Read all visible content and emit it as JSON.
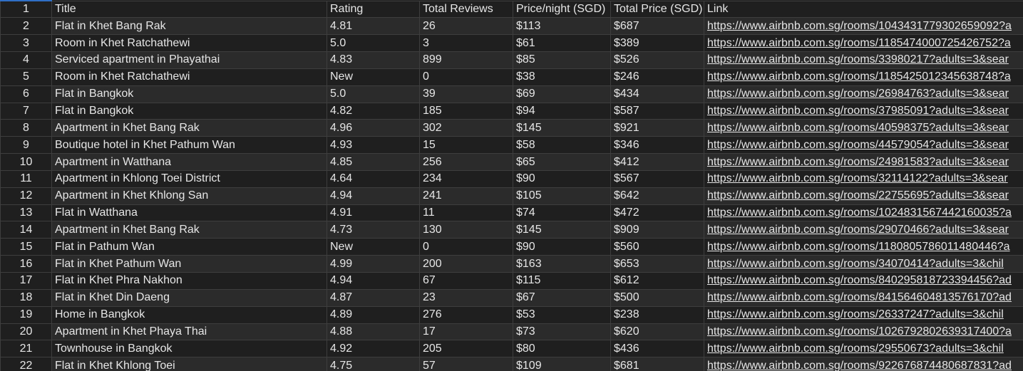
{
  "header": {
    "row_number": "1",
    "columns": [
      "Title",
      "Rating",
      "Total Reviews",
      "Price/night (SGD)",
      "Total Price (SGD)",
      "Link"
    ]
  },
  "rows": [
    {
      "n": "2",
      "title": "Flat in Khet Bang Rak",
      "rating": "4.81",
      "reviews": "26",
      "price_night": "$113",
      "total": "$687",
      "link": "https://www.airbnb.com.sg/rooms/1043431779302659092?a"
    },
    {
      "n": "3",
      "title": "Room in Khet Ratchathewi",
      "rating": "5.0",
      "reviews": "3",
      "price_night": "$61",
      "total": "$389",
      "link": "https://www.airbnb.com.sg/rooms/1185474000725426752?a"
    },
    {
      "n": "4",
      "title": "Serviced apartment in Phayathai",
      "rating": "4.83",
      "reviews": "899",
      "price_night": "$85",
      "total": "$526",
      "link": "https://www.airbnb.com.sg/rooms/33980217?adults=3&sear"
    },
    {
      "n": "5",
      "title": "Room in Khet Ratchathewi",
      "rating": "New",
      "reviews": "0",
      "price_night": "$38",
      "total": "$246",
      "link": "https://www.airbnb.com.sg/rooms/1185425012345638748?a"
    },
    {
      "n": "6",
      "title": "Flat in Bangkok",
      "rating": "5.0",
      "reviews": "39",
      "price_night": "$69",
      "total": "$434",
      "link": "https://www.airbnb.com.sg/rooms/26984763?adults=3&sear"
    },
    {
      "n": "7",
      "title": "Flat in Bangkok",
      "rating": "4.82",
      "reviews": "185",
      "price_night": "$94",
      "total": "$587",
      "link": "https://www.airbnb.com.sg/rooms/37985091?adults=3&sear"
    },
    {
      "n": "8",
      "title": "Apartment in Khet Bang Rak",
      "rating": "4.96",
      "reviews": "302",
      "price_night": "$145",
      "total": "$921",
      "link": "https://www.airbnb.com.sg/rooms/40598375?adults=3&sear"
    },
    {
      "n": "9",
      "title": "Boutique hotel in Khet Pathum Wan",
      "rating": "4.93",
      "reviews": "15",
      "price_night": "$58",
      "total": "$346",
      "link": "https://www.airbnb.com.sg/rooms/44579054?adults=3&sear"
    },
    {
      "n": "10",
      "title": "Apartment in Watthana",
      "rating": "4.85",
      "reviews": "256",
      "price_night": "$65",
      "total": "$412",
      "link": "https://www.airbnb.com.sg/rooms/24981583?adults=3&sear"
    },
    {
      "n": "11",
      "title": "Apartment in  Khlong Toei District",
      "rating": "4.64",
      "reviews": "234",
      "price_night": "$90",
      "total": "$567",
      "link": "https://www.airbnb.com.sg/rooms/32114122?adults=3&sear"
    },
    {
      "n": "12",
      "title": "Apartment in Khet Khlong San",
      "rating": "4.94",
      "reviews": "241",
      "price_night": "$105",
      "total": "$642",
      "link": "https://www.airbnb.com.sg/rooms/22755695?adults=3&sear"
    },
    {
      "n": "13",
      "title": "Flat in Watthana",
      "rating": "4.91",
      "reviews": "11",
      "price_night": "$74",
      "total": "$472",
      "link": "https://www.airbnb.com.sg/rooms/1024831567442160035?a"
    },
    {
      "n": "14",
      "title": "Apartment in Khet Bang Rak",
      "rating": "4.73",
      "reviews": "130",
      "price_night": "$145",
      "total": "$909",
      "link": "https://www.airbnb.com.sg/rooms/29070466?adults=3&sear"
    },
    {
      "n": "15",
      "title": "Flat in Pathum Wan",
      "rating": "New",
      "reviews": "0",
      "price_night": "$90",
      "total": "$560",
      "link": "https://www.airbnb.com.sg/rooms/1180805786011480446?a"
    },
    {
      "n": "16",
      "title": "Flat in Khet Pathum Wan",
      "rating": "4.99",
      "reviews": "200",
      "price_night": "$163",
      "total": "$653",
      "link": "https://www.airbnb.com.sg/rooms/34070414?adults=3&chil"
    },
    {
      "n": "17",
      "title": "Flat in Khet Phra Nakhon",
      "rating": "4.94",
      "reviews": "67",
      "price_night": "$115",
      "total": "$612",
      "link": "https://www.airbnb.com.sg/rooms/840295818723394456?ad"
    },
    {
      "n": "18",
      "title": "Flat in Khet Din Daeng",
      "rating": "4.87",
      "reviews": "23",
      "price_night": "$67",
      "total": "$500",
      "link": "https://www.airbnb.com.sg/rooms/841564604813576170?ad"
    },
    {
      "n": "19",
      "title": "Home in Bangkok",
      "rating": "4.89",
      "reviews": "276",
      "price_night": "$53",
      "total": "$238",
      "link": "https://www.airbnb.com.sg/rooms/26337247?adults=3&chil"
    },
    {
      "n": "20",
      "title": "Apartment in Khet Phaya Thai",
      "rating": "4.88",
      "reviews": "17",
      "price_night": "$73",
      "total": "$620",
      "link": "https://www.airbnb.com.sg/rooms/1026792802639317400?a"
    },
    {
      "n": "21",
      "title": "Townhouse in Bangkok",
      "rating": "4.92",
      "reviews": "205",
      "price_night": "$80",
      "total": "$436",
      "link": "https://www.airbnb.com.sg/rooms/29550673?adults=3&chil"
    },
    {
      "n": "22",
      "title": "Flat in Khet Khlong Toei",
      "rating": "4.75",
      "reviews": "57",
      "price_night": "$109",
      "total": "$681",
      "link": "https://www.airbnb.com.sg/rooms/922676874480687831?ad"
    }
  ]
}
